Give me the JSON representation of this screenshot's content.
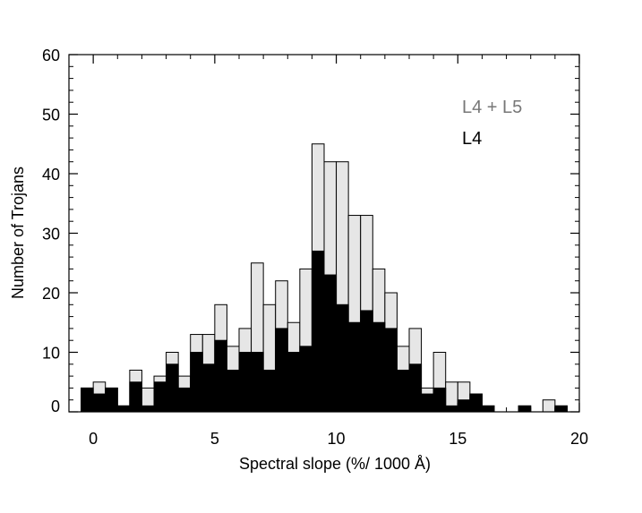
{
  "chart_data": {
    "type": "bar",
    "subtype": "overlaid-histogram",
    "title": "",
    "xlabel": "Spectral slope (%/ 1000 Å)",
    "ylabel": "Number of Trojans",
    "xlim": [
      -1,
      20
    ],
    "ylim": [
      0,
      60
    ],
    "xticks": [
      "0",
      "5",
      "10",
      "15",
      "20"
    ],
    "yticks": [
      "0",
      "10",
      "20",
      "30",
      "40",
      "50",
      "60"
    ],
    "bin_width": 0.5,
    "bin_left_edges": [
      -0.5,
      0,
      0.5,
      1,
      1.5,
      2,
      2.5,
      3,
      3.5,
      4,
      4.5,
      5,
      5.5,
      6,
      6.5,
      7,
      7.5,
      8,
      8.5,
      9,
      9.5,
      10,
      10.5,
      11,
      11.5,
      12,
      12.5,
      13,
      13.5,
      14,
      14.5,
      15,
      15.5,
      16,
      16.5,
      17,
      17.5,
      18,
      18.5,
      19
    ],
    "series": [
      {
        "name": "L4 + L5",
        "color": "#e6e6e6",
        "values": [
          4,
          5,
          4,
          1,
          7,
          4,
          6,
          10,
          6,
          13,
          13,
          18,
          11,
          14,
          25,
          18,
          22,
          15,
          24,
          45,
          42,
          42,
          33,
          33,
          24,
          20,
          11,
          14,
          4,
          10,
          5,
          5,
          3,
          1,
          0,
          0,
          1,
          0,
          2,
          1
        ]
      },
      {
        "name": "L4",
        "color": "#000000",
        "values": [
          4,
          3,
          4,
          1,
          5,
          1,
          5,
          8,
          4,
          10,
          8,
          12,
          7,
          10,
          10,
          7,
          14,
          10,
          11,
          27,
          23,
          18,
          15,
          17,
          15,
          14,
          7,
          8,
          3,
          4,
          1,
          2,
          3,
          1,
          0,
          0,
          1,
          0,
          0,
          1
        ]
      }
    ],
    "legend_position": "top-right",
    "grid": false
  }
}
